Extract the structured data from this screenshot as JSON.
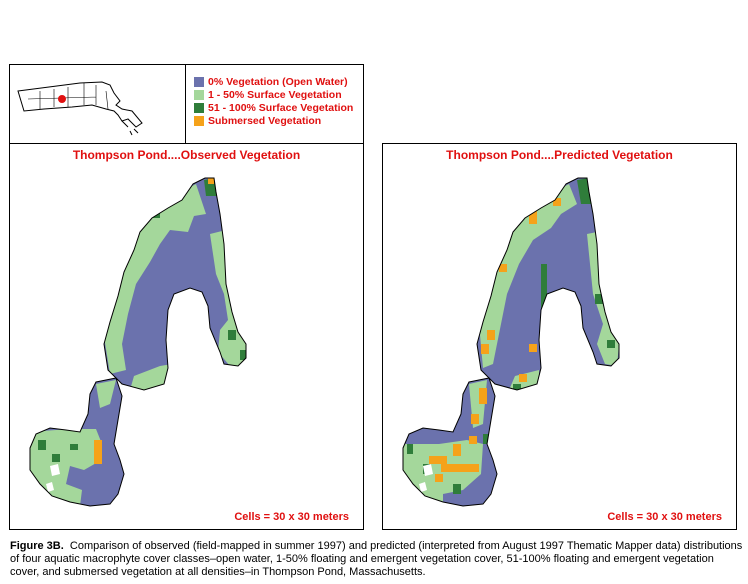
{
  "legend": {
    "items": [
      {
        "label": "0% Vegetation (Open Water)",
        "color": "#6b72ad"
      },
      {
        "label": "1 - 50% Surface Vegetation",
        "color": "#a4d79b"
      },
      {
        "label": "51 - 100% Surface Vegetation",
        "color": "#2f7d3a"
      },
      {
        "label": "Submersed Vegetation",
        "color": "#f5a21a"
      }
    ]
  },
  "locator": {
    "marker_color": "#e01010"
  },
  "panels": {
    "observed": {
      "title": "Thompson Pond....Observed Vegetation",
      "cells_note": "Cells = 30 x 30 meters"
    },
    "predicted": {
      "title": "Thompson Pond....Predicted Vegetation",
      "cells_note": "Cells = 30 x 30 meters"
    }
  },
  "caption": {
    "label": "Figure 3B.",
    "text": "Comparison of observed (field-mapped in summer 1997) and predicted (interpreted from August 1997 Thematic Mapper data) distributions of four aquatic macrophyte cover classes–open water, 1-50% floating and emergent vegetation cover, 51-100% floating and emergent vegetation cover, and submersed vegetation at all densities–in Thompson Pond, Massachusetts."
  }
}
